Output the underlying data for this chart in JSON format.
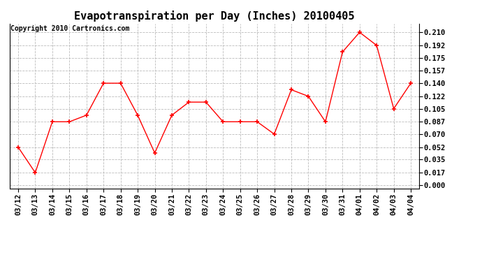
{
  "title": "Evapotranspiration per Day (Inches) 20100405",
  "copyright": "Copyright 2010 Cartronics.com",
  "x_labels": [
    "03/12",
    "03/13",
    "03/14",
    "03/15",
    "03/16",
    "03/17",
    "03/18",
    "03/19",
    "03/20",
    "03/21",
    "03/22",
    "03/23",
    "03/24",
    "03/25",
    "03/26",
    "03/27",
    "03/28",
    "03/29",
    "03/30",
    "03/31",
    "04/01",
    "04/02",
    "04/03",
    "04/04"
  ],
  "y_values": [
    0.052,
    0.017,
    0.087,
    0.087,
    0.096,
    0.14,
    0.14,
    0.096,
    0.044,
    0.096,
    0.114,
    0.114,
    0.087,
    0.087,
    0.087,
    0.07,
    0.131,
    0.122,
    0.087,
    0.183,
    0.21,
    0.192,
    0.105,
    0.14
  ],
  "y_ticks": [
    0.0,
    0.017,
    0.035,
    0.052,
    0.07,
    0.087,
    0.105,
    0.122,
    0.14,
    0.157,
    0.175,
    0.192,
    0.21
  ],
  "line_color": "red",
  "marker": "+",
  "marker_color": "red",
  "grid_color": "#bbbbbb",
  "background_color": "#ffffff",
  "title_fontsize": 11,
  "copyright_fontsize": 7,
  "tick_fontsize": 7.5,
  "ylim": [
    -0.005,
    0.222
  ]
}
